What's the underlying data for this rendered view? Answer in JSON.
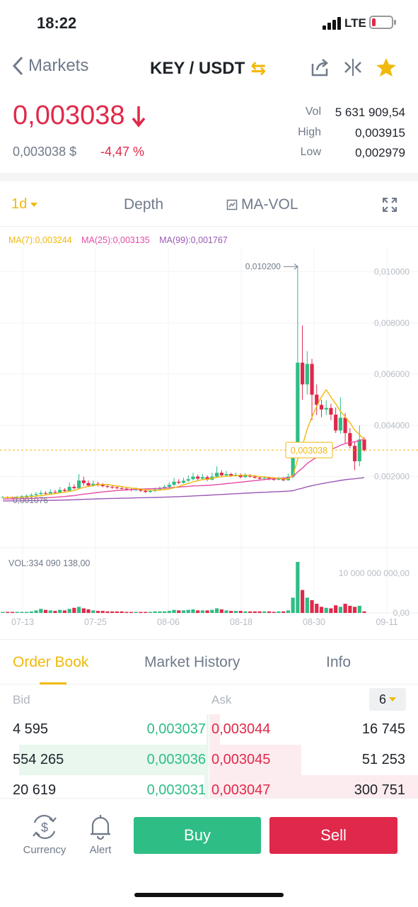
{
  "status_bar": {
    "time": "18:22",
    "network": "LTE"
  },
  "nav": {
    "back_label": "Markets",
    "pair": "KEY / USDT",
    "icons": [
      "back-chevron-icon",
      "swap-arrows-icon",
      "share-icon",
      "compare-icon",
      "star-icon"
    ]
  },
  "ticker": {
    "last_price": "0,003038",
    "usd_price": "0,003038 $",
    "change": "-4,47 %",
    "stats": [
      {
        "label": "Vol",
        "value": "5 631 909,54"
      },
      {
        "label": "High",
        "value": "0,003915"
      },
      {
        "label": "Low",
        "value": "0,002979"
      }
    ]
  },
  "chart_tabs": {
    "interval": "1d",
    "depth": "Depth",
    "indicator": "MA-VOL"
  },
  "indicators": {
    "ma7": "MA(7):0,003244",
    "ma25": "MA(25):0,003135",
    "ma99": "MA(99):0,001767",
    "vol": "VOL:334 090 138,00"
  },
  "chart_data": {
    "type": "candlestick",
    "y_axis_ticks": [
      "0,010000",
      "0,008000",
      "0,006000",
      "0,004000",
      "0,002000"
    ],
    "x_axis_ticks": [
      "07-13",
      "07-25",
      "08-06",
      "08-18",
      "08-30",
      "09-11"
    ],
    "vol_axis_ticks": [
      "10 000 000 000,00",
      "0,00"
    ],
    "ylim": [
      0.0008,
      0.0104
    ],
    "current_price_label": "0,003038",
    "max_label": "0,010200",
    "min_label": "0,001076",
    "colors": {
      "up": "#2ebd85",
      "down": "#e0294a",
      "ma7": "#f0b90b",
      "ma25": "#e34ca8",
      "ma99": "#9b59b6"
    },
    "candles": [
      [
        0.00118,
        0.0012,
        0.00124,
        0.00116,
        0.01
      ],
      [
        0.0012,
        0.00119,
        0.00123,
        0.00115,
        0.01
      ],
      [
        0.00119,
        0.00118,
        0.00122,
        0.00114,
        0.01
      ],
      [
        0.00118,
        0.00121,
        0.00125,
        0.00116,
        0.01
      ],
      [
        0.00121,
        0.00123,
        0.00128,
        0.00119,
        0.01
      ],
      [
        0.00123,
        0.00125,
        0.00131,
        0.0012,
        0.02
      ],
      [
        0.00125,
        0.00128,
        0.00135,
        0.00122,
        0.03
      ],
      [
        0.00128,
        0.00132,
        0.0014,
        0.00125,
        0.05
      ],
      [
        0.00132,
        0.00136,
        0.00145,
        0.00128,
        0.08
      ],
      [
        0.00136,
        0.00134,
        0.00142,
        0.0013,
        0.06
      ],
      [
        0.00134,
        0.0014,
        0.0015,
        0.0013,
        0.05
      ],
      [
        0.0014,
        0.00138,
        0.00148,
        0.00133,
        0.04
      ],
      [
        0.00138,
        0.00148,
        0.0016,
        0.00135,
        0.06
      ],
      [
        0.00148,
        0.00144,
        0.00155,
        0.0014,
        0.05
      ],
      [
        0.00144,
        0.0016,
        0.00178,
        0.00142,
        0.08
      ],
      [
        0.0016,
        0.00155,
        0.0017,
        0.0015,
        0.1
      ],
      [
        0.00155,
        0.00185,
        0.0021,
        0.0015,
        0.12
      ],
      [
        0.00185,
        0.00175,
        0.002,
        0.00165,
        0.09
      ],
      [
        0.00175,
        0.00165,
        0.00185,
        0.0016,
        0.07
      ],
      [
        0.00165,
        0.00172,
        0.00185,
        0.0016,
        0.05
      ],
      [
        0.00172,
        0.00168,
        0.0018,
        0.00162,
        0.04
      ],
      [
        0.00168,
        0.00163,
        0.00175,
        0.00158,
        0.04
      ],
      [
        0.00163,
        0.0016,
        0.0017,
        0.00155,
        0.03
      ],
      [
        0.0016,
        0.00158,
        0.00168,
        0.00152,
        0.03
      ],
      [
        0.00158,
        0.00155,
        0.00165,
        0.0015,
        0.03
      ],
      [
        0.00155,
        0.00153,
        0.00162,
        0.00148,
        0.03
      ],
      [
        0.00153,
        0.0015,
        0.00158,
        0.00145,
        0.02
      ],
      [
        0.0015,
        0.00148,
        0.00156,
        0.00143,
        0.02
      ],
      [
        0.00148,
        0.0015,
        0.00158,
        0.00144,
        0.02
      ],
      [
        0.0015,
        0.00145,
        0.00155,
        0.0014,
        0.02
      ],
      [
        0.00145,
        0.0014,
        0.0015,
        0.00136,
        0.02
      ],
      [
        0.0014,
        0.00144,
        0.0015,
        0.00137,
        0.02
      ],
      [
        0.00144,
        0.0015,
        0.00156,
        0.0014,
        0.03
      ],
      [
        0.0015,
        0.00155,
        0.00162,
        0.00146,
        0.03
      ],
      [
        0.00155,
        0.0016,
        0.00168,
        0.0015,
        0.03
      ],
      [
        0.0016,
        0.00168,
        0.00178,
        0.00155,
        0.04
      ],
      [
        0.00168,
        0.0018,
        0.00195,
        0.00162,
        0.06
      ],
      [
        0.0018,
        0.00176,
        0.0019,
        0.0017,
        0.05
      ],
      [
        0.00176,
        0.00184,
        0.00196,
        0.00172,
        0.05
      ],
      [
        0.00184,
        0.0019,
        0.00205,
        0.00178,
        0.06
      ],
      [
        0.0019,
        0.002,
        0.00215,
        0.00185,
        0.07
      ],
      [
        0.002,
        0.00192,
        0.00208,
        0.00186,
        0.05
      ],
      [
        0.00192,
        0.00198,
        0.0021,
        0.00188,
        0.05
      ],
      [
        0.00198,
        0.00188,
        0.00205,
        0.00183,
        0.05
      ],
      [
        0.00188,
        0.002,
        0.00215,
        0.00185,
        0.06
      ],
      [
        0.002,
        0.00215,
        0.0024,
        0.00195,
        0.09
      ],
      [
        0.00215,
        0.00205,
        0.00225,
        0.00198,
        0.07
      ],
      [
        0.00205,
        0.0021,
        0.00222,
        0.002,
        0.05
      ],
      [
        0.0021,
        0.00203,
        0.00215,
        0.00198,
        0.04
      ],
      [
        0.00203,
        0.00207,
        0.00216,
        0.002,
        0.04
      ],
      [
        0.00207,
        0.00198,
        0.00212,
        0.00194,
        0.04
      ],
      [
        0.00198,
        0.00205,
        0.00214,
        0.00195,
        0.03
      ],
      [
        0.00205,
        0.002,
        0.0021,
        0.00196,
        0.03
      ],
      [
        0.002,
        0.00196,
        0.00206,
        0.00192,
        0.03
      ],
      [
        0.00196,
        0.00192,
        0.00202,
        0.00188,
        0.03
      ],
      [
        0.00192,
        0.00195,
        0.00202,
        0.00188,
        0.03
      ],
      [
        0.00195,
        0.0019,
        0.002,
        0.00186,
        0.03
      ],
      [
        0.0019,
        0.00188,
        0.00198,
        0.00184,
        0.02
      ],
      [
        0.00188,
        0.00192,
        0.002,
        0.00185,
        0.03
      ],
      [
        0.00192,
        0.00186,
        0.00198,
        0.00182,
        0.03
      ],
      [
        0.00186,
        0.002,
        0.00212,
        0.00184,
        0.05
      ],
      [
        0.002,
        0.00275,
        0.0029,
        0.00195,
        0.3
      ],
      [
        0.00275,
        0.00645,
        0.0102,
        0.0027,
        1.0
      ],
      [
        0.00645,
        0.0056,
        0.0079,
        0.005,
        0.45
      ],
      [
        0.0056,
        0.0064,
        0.0069,
        0.0052,
        0.3
      ],
      [
        0.0064,
        0.0052,
        0.0066,
        0.0042,
        0.25
      ],
      [
        0.0052,
        0.0048,
        0.0056,
        0.0044,
        0.18
      ],
      [
        0.0048,
        0.00462,
        0.005,
        0.00432,
        0.12
      ],
      [
        0.00462,
        0.00468,
        0.00498,
        0.0044,
        0.1
      ],
      [
        0.00468,
        0.00442,
        0.00484,
        0.0042,
        0.09
      ],
      [
        0.00442,
        0.0038,
        0.0047,
        0.0037,
        0.15
      ],
      [
        0.0038,
        0.0043,
        0.0051,
        0.00368,
        0.12
      ],
      [
        0.0043,
        0.0037,
        0.00448,
        0.0033,
        0.18
      ],
      [
        0.0037,
        0.0032,
        0.0039,
        0.0031,
        0.14
      ],
      [
        0.0032,
        0.0026,
        0.00338,
        0.00225,
        0.12
      ],
      [
        0.0026,
        0.00345,
        0.004,
        0.0024,
        0.14
      ],
      [
        0.00345,
        0.00303,
        0.00355,
        0.00298,
        0.03
      ]
    ]
  },
  "order_book_tabs": [
    "Order Book",
    "Market History",
    "Info"
  ],
  "order_book": {
    "bid_label": "Bid",
    "ask_label": "Ask",
    "precision": "6",
    "rows": [
      {
        "bid_qty": "4 595",
        "bid_price": "0,003037",
        "ask_price": "0,003044",
        "ask_qty": "16 745",
        "bid_depth": 0.01,
        "ask_depth": 0.05
      },
      {
        "bid_qty": "554 265",
        "bid_price": "0,003036",
        "ask_price": "0,003045",
        "ask_qty": "51 253",
        "bid_depth": 0.91,
        "ask_depth": 0.44
      },
      {
        "bid_qty": "20 619",
        "bid_price": "0,003031",
        "ask_price": "0,003047",
        "ask_qty": "300 751",
        "bid_depth": 0.02,
        "ask_depth": 1.0
      }
    ]
  },
  "bottom_bar": {
    "currency": "Currency",
    "alert": "Alert",
    "buy": "Buy",
    "sell": "Sell"
  }
}
